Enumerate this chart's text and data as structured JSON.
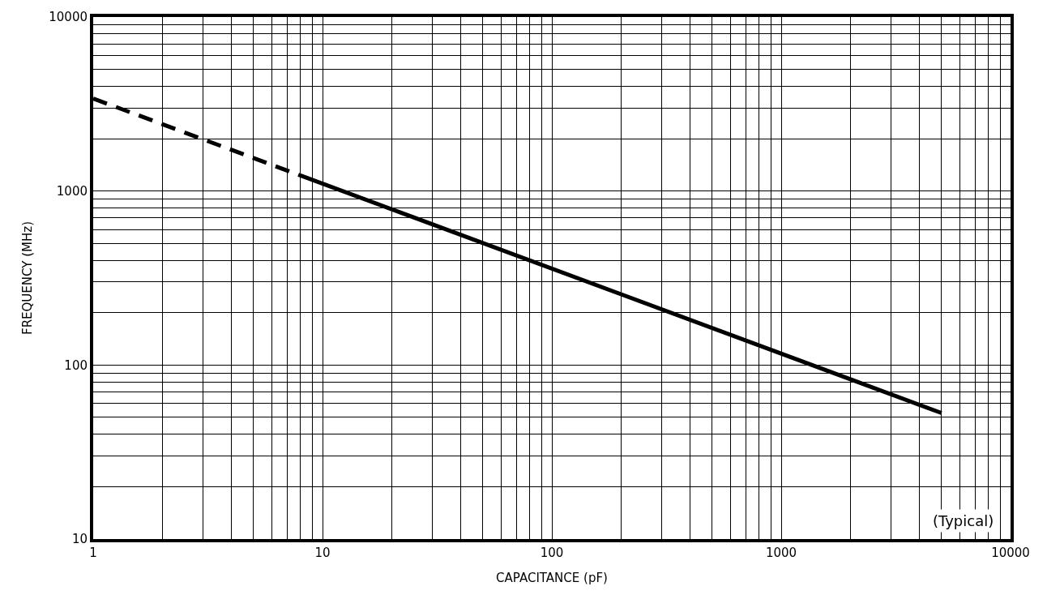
{
  "chart_data": {
    "type": "line",
    "xlabel": "CAPACITANCE (pF)",
    "ylabel": "FREQUENCY (MHz)",
    "log": "xy",
    "xlim": [
      1,
      10000
    ],
    "ylim": [
      10,
      10000
    ],
    "xticks": [
      1,
      {
        "value": 2,
        "label": null
      },
      {
        "value": 3,
        "label": null
      },
      {
        "value": 4,
        "label": null
      },
      {
        "value": 5,
        "label": null
      },
      {
        "value": 6,
        "label": null
      },
      {
        "value": 7,
        "label": null
      },
      {
        "value": 8,
        "label": null
      },
      {
        "value": 9,
        "label": null
      },
      10,
      {
        "value": 20,
        "label": null
      },
      {
        "value": 30,
        "label": null
      },
      {
        "value": 40,
        "label": null
      },
      {
        "value": 50,
        "label": null
      },
      {
        "value": 60,
        "label": null
      },
      {
        "value": 70,
        "label": null
      },
      {
        "value": 80,
        "label": null
      },
      {
        "value": 90,
        "label": null
      },
      100,
      {
        "value": 200,
        "label": null
      },
      {
        "value": 300,
        "label": null
      },
      {
        "value": 400,
        "label": null
      },
      {
        "value": 500,
        "label": null
      },
      {
        "value": 600,
        "label": null
      },
      {
        "value": 700,
        "label": null
      },
      {
        "value": 800,
        "label": null
      },
      {
        "value": 900,
        "label": null
      },
      1000,
      {
        "value": 2000,
        "label": null
      },
      {
        "value": 3000,
        "label": null
      },
      {
        "value": 4000,
        "label": null
      },
      {
        "value": 5000,
        "label": null
      },
      {
        "value": 6000,
        "label": null
      },
      {
        "value": 7000,
        "label": null
      },
      {
        "value": 8000,
        "label": null
      },
      {
        "value": 9000,
        "label": null
      },
      10000
    ],
    "yticks": [
      10,
      {
        "value": 20,
        "label": null
      },
      {
        "value": 30,
        "label": null
      },
      {
        "value": 40,
        "label": null
      },
      {
        "value": 50,
        "label": null
      },
      {
        "value": 60,
        "label": null
      },
      {
        "value": 70,
        "label": null
      },
      {
        "value": 80,
        "label": null
      },
      {
        "value": 90,
        "label": null
      },
      100,
      {
        "value": 200,
        "label": null
      },
      {
        "value": 300,
        "label": null
      },
      {
        "value": 400,
        "label": null
      },
      {
        "value": 500,
        "label": null
      },
      {
        "value": 600,
        "label": null
      },
      {
        "value": 700,
        "label": null
      },
      {
        "value": 800,
        "label": null
      },
      {
        "value": 900,
        "label": null
      },
      1000,
      {
        "value": 2000,
        "label": null
      },
      {
        "value": 3000,
        "label": null
      },
      {
        "value": 4000,
        "label": null
      },
      {
        "value": 5000,
        "label": null
      },
      {
        "value": 6000,
        "label": null
      },
      {
        "value": 7000,
        "label": null
      },
      {
        "value": 8000,
        "label": null
      },
      {
        "value": 9000,
        "label": null
      },
      10000
    ],
    "grid": true,
    "marker": "none",
    "series": [
      {
        "color": "#000000",
        "line_style": "dashed",
        "x": [
          1,
          8
        ],
        "values": [
          3400,
          1230
        ]
      },
      {
        "color": "#000000",
        "line_style": "solid",
        "x": [
          8,
          5000
        ],
        "values": [
          1230,
          53
        ]
      }
    ],
    "annotations": [
      "(Typical)"
    ]
  }
}
